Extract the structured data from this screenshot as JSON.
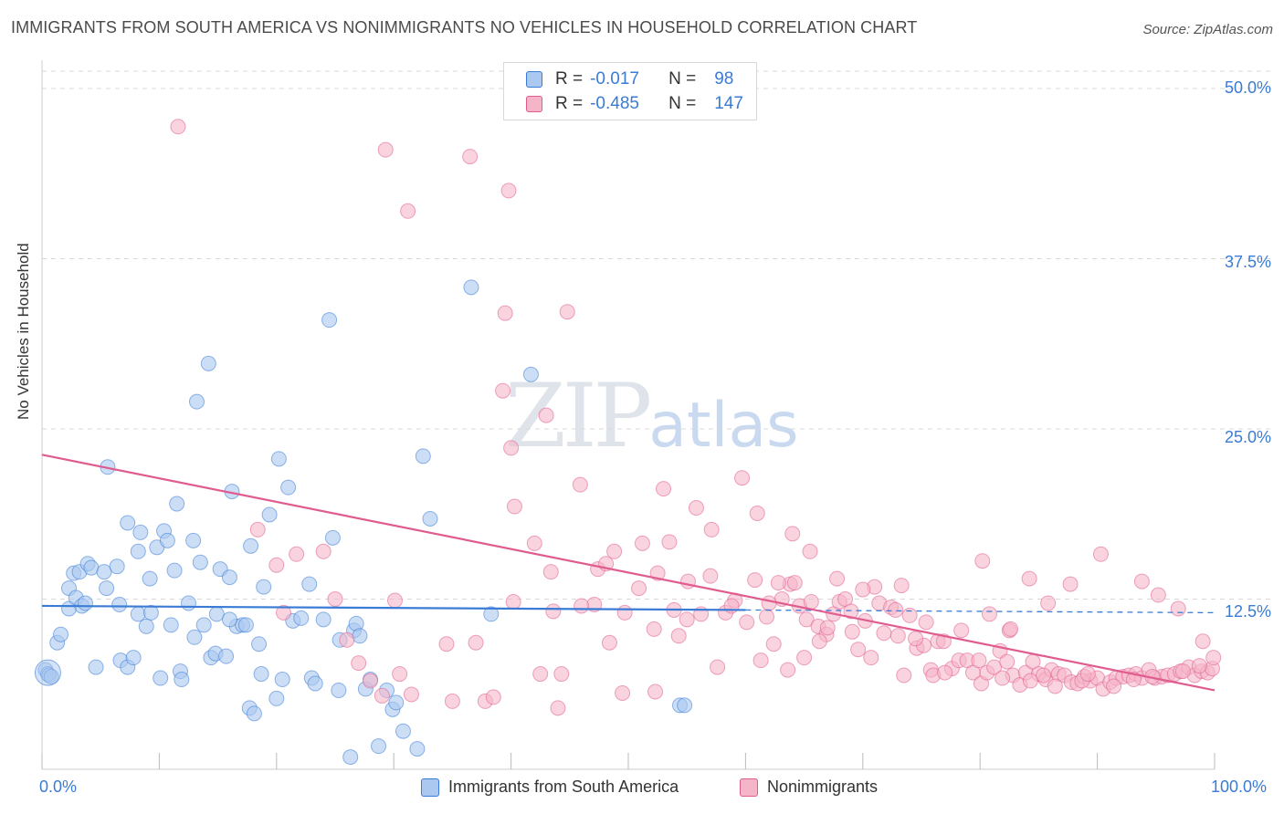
{
  "title": "IMMIGRANTS FROM SOUTH AMERICA VS NONIMMIGRANTS NO VEHICLES IN HOUSEHOLD CORRELATION CHART",
  "source": "Source: ZipAtlas.com",
  "watermark": {
    "zip": "ZIP",
    "atlas": "atlas"
  },
  "legend": {
    "series1": {
      "r_label": "R =",
      "r_value": "-0.017",
      "n_label": "N =",
      "n_value": "98"
    },
    "series2": {
      "r_label": "R =",
      "r_value": "-0.485",
      "n_label": "N =",
      "n_value": "147"
    }
  },
  "colors": {
    "blue": "#3a7bd5",
    "blue_fill": "#aac8f0",
    "pink": "#e05c8f",
    "pink_fill": "#f5b5c8",
    "grid": "#d8d8d8"
  },
  "chart_data": {
    "type": "scatter",
    "title": "IMMIGRANTS FROM SOUTH AMERICA VS NONIMMIGRANTS NO VEHICLES IN HOUSEHOLD CORRELATION CHART",
    "xlabel": "",
    "ylabel": "No Vehicles in Household",
    "xlim": [
      0,
      100
    ],
    "ylim": [
      0,
      50
    ],
    "x_tick_labels": [
      "0.0%",
      "100.0%"
    ],
    "y_ticks": [
      12.5,
      25.0,
      37.5,
      50.0
    ],
    "y_tick_labels": [
      "12.5%",
      "25.0%",
      "37.5%",
      "50.0%"
    ],
    "grid": true,
    "legend_position": "bottom",
    "series": [
      {
        "name": "Immigrants from South America",
        "color": "#3a7bd5",
        "trend": {
          "x0": 0,
          "y0": 12.0,
          "x1": 60,
          "y1": 11.7,
          "dashed_to": 100,
          "y_end": 11.5
        },
        "points": [
          [
            0.3,
            7.3
          ],
          [
            0.5,
            7.0
          ],
          [
            0.6,
            6.9
          ],
          [
            0.8,
            6.8
          ],
          [
            1.3,
            9.3
          ],
          [
            1.6,
            9.9
          ],
          [
            2.3,
            11.8
          ],
          [
            2.3,
            13.3
          ],
          [
            2.7,
            14.4
          ],
          [
            2.9,
            12.6
          ],
          [
            3.2,
            14.5
          ],
          [
            3.4,
            12.0
          ],
          [
            3.7,
            12.2
          ],
          [
            3.9,
            15.1
          ],
          [
            4.2,
            14.8
          ],
          [
            4.6,
            7.5
          ],
          [
            5.3,
            14.5
          ],
          [
            5.5,
            13.3
          ],
          [
            5.6,
            22.2
          ],
          [
            6.4,
            14.9
          ],
          [
            6.6,
            12.1
          ],
          [
            6.7,
            8.0
          ],
          [
            7.3,
            18.1
          ],
          [
            7.3,
            7.5
          ],
          [
            7.8,
            8.2
          ],
          [
            8.2,
            11.4
          ],
          [
            8.4,
            17.4
          ],
          [
            8.9,
            10.5
          ],
          [
            9.2,
            14.0
          ],
          [
            9.3,
            11.5
          ],
          [
            9.8,
            16.3
          ],
          [
            10.1,
            6.7
          ],
          [
            10.4,
            17.5
          ],
          [
            10.7,
            16.8
          ],
          [
            11.0,
            10.6
          ],
          [
            11.3,
            14.6
          ],
          [
            11.5,
            19.5
          ],
          [
            11.8,
            7.2
          ],
          [
            11.9,
            6.6
          ],
          [
            12.5,
            12.2
          ],
          [
            12.9,
            16.8
          ],
          [
            13.0,
            9.7
          ],
          [
            13.2,
            27.0
          ],
          [
            13.5,
            15.2
          ],
          [
            13.8,
            10.6
          ],
          [
            14.2,
            29.8
          ],
          [
            14.4,
            8.2
          ],
          [
            14.9,
            11.4
          ],
          [
            14.8,
            8.5
          ],
          [
            15.2,
            14.7
          ],
          [
            15.7,
            8.3
          ],
          [
            16.0,
            14.1
          ],
          [
            16.2,
            20.4
          ],
          [
            16.6,
            10.5
          ],
          [
            17.1,
            10.6
          ],
          [
            17.4,
            10.6
          ],
          [
            17.7,
            4.5
          ],
          [
            17.8,
            16.4
          ],
          [
            18.1,
            4.1
          ],
          [
            18.5,
            9.2
          ],
          [
            18.7,
            7.0
          ],
          [
            18.9,
            13.4
          ],
          [
            19.4,
            18.7
          ],
          [
            20.0,
            5.2
          ],
          [
            20.2,
            22.8
          ],
          [
            20.5,
            6.6
          ],
          [
            21.0,
            20.7
          ],
          [
            21.4,
            10.9
          ],
          [
            22.1,
            11.1
          ],
          [
            22.8,
            13.6
          ],
          [
            23.0,
            6.7
          ],
          [
            23.3,
            6.3
          ],
          [
            24.0,
            11.0
          ],
          [
            24.5,
            33.0
          ],
          [
            24.8,
            17.0
          ],
          [
            25.3,
            5.8
          ],
          [
            25.4,
            9.5
          ],
          [
            26.3,
            0.9
          ],
          [
            26.6,
            10.2
          ],
          [
            26.8,
            10.7
          ],
          [
            27.1,
            9.8
          ],
          [
            27.6,
            5.9
          ],
          [
            28.0,
            6.6
          ],
          [
            28.7,
            1.7
          ],
          [
            29.4,
            5.8
          ],
          [
            29.9,
            4.4
          ],
          [
            30.2,
            4.9
          ],
          [
            30.8,
            2.8
          ],
          [
            32.0,
            1.5
          ],
          [
            32.5,
            23.0
          ],
          [
            33.1,
            18.4
          ],
          [
            36.6,
            35.4
          ],
          [
            38.3,
            11.4
          ],
          [
            41.7,
            29.0
          ],
          [
            54.4,
            4.7
          ],
          [
            54.8,
            4.7
          ],
          [
            8.2,
            16.0
          ],
          [
            16.0,
            11.0
          ]
        ]
      },
      {
        "name": "Nonimmigrants",
        "color": "#e05c8f",
        "trend": {
          "x0": 0,
          "y0": 23.1,
          "x1": 100,
          "y1": 5.8
        },
        "points": [
          [
            11.6,
            47.2
          ],
          [
            29.3,
            45.5
          ],
          [
            31.2,
            41.0
          ],
          [
            30.1,
            12.4
          ],
          [
            36.5,
            45.0
          ],
          [
            39.8,
            42.5
          ],
          [
            39.5,
            33.5
          ],
          [
            39.3,
            27.8
          ],
          [
            40.0,
            23.6
          ],
          [
            40.3,
            19.3
          ],
          [
            42.0,
            16.6
          ],
          [
            43.0,
            26.0
          ],
          [
            43.4,
            14.5
          ],
          [
            43.6,
            11.6
          ],
          [
            44.0,
            4.5
          ],
          [
            44.8,
            33.6
          ],
          [
            45.9,
            20.9
          ],
          [
            47.1,
            12.1
          ],
          [
            47.4,
            14.7
          ],
          [
            48.1,
            15.1
          ],
          [
            48.4,
            9.3
          ],
          [
            48.8,
            16.0
          ],
          [
            49.7,
            11.5
          ],
          [
            50.9,
            13.3
          ],
          [
            51.2,
            16.6
          ],
          [
            52.2,
            10.3
          ],
          [
            52.5,
            14.4
          ],
          [
            53.0,
            20.6
          ],
          [
            53.5,
            16.7
          ],
          [
            53.9,
            11.7
          ],
          [
            54.3,
            9.8
          ],
          [
            55.1,
            13.8
          ],
          [
            55.8,
            19.2
          ],
          [
            56.2,
            11.4
          ],
          [
            57.0,
            14.2
          ],
          [
            57.6,
            7.5
          ],
          [
            58.3,
            11.5
          ],
          [
            59.1,
            12.4
          ],
          [
            59.7,
            21.4
          ],
          [
            60.1,
            10.8
          ],
          [
            60.8,
            13.9
          ],
          [
            61.3,
            8.0
          ],
          [
            61.8,
            11.2
          ],
          [
            62.4,
            9.2
          ],
          [
            63.1,
            12.5
          ],
          [
            63.6,
            7.3
          ],
          [
            64.0,
            17.3
          ],
          [
            64.6,
            12.0
          ],
          [
            65.2,
            11.0
          ],
          [
            65.6,
            12.3
          ],
          [
            66.2,
            10.5
          ],
          [
            66.9,
            9.9
          ],
          [
            67.5,
            11.4
          ],
          [
            68.0,
            12.3
          ],
          [
            68.5,
            12.5
          ],
          [
            69.1,
            10.1
          ],
          [
            69.6,
            8.8
          ],
          [
            70.2,
            10.9
          ],
          [
            70.7,
            8.2
          ],
          [
            71.4,
            12.2
          ],
          [
            71.8,
            10.0
          ],
          [
            72.4,
            11.9
          ],
          [
            73.0,
            9.8
          ],
          [
            73.5,
            6.9
          ],
          [
            74.0,
            11.3
          ],
          [
            74.6,
            8.9
          ],
          [
            75.2,
            9.1
          ],
          [
            75.8,
            7.3
          ],
          [
            76.4,
            9.4
          ],
          [
            76.9,
            9.4
          ],
          [
            77.6,
            7.4
          ],
          [
            78.2,
            8.0
          ],
          [
            78.9,
            8.0
          ],
          [
            79.4,
            7.1
          ],
          [
            80.1,
            6.3
          ],
          [
            80.6,
            7.1
          ],
          [
            81.2,
            7.5
          ],
          [
            81.7,
            8.7
          ],
          [
            82.3,
            7.9
          ],
          [
            82.8,
            6.9
          ],
          [
            83.4,
            6.2
          ],
          [
            83.9,
            7.1
          ],
          [
            84.5,
            7.9
          ],
          [
            85.0,
            7.0
          ],
          [
            85.6,
            6.6
          ],
          [
            86.1,
            7.3
          ],
          [
            86.7,
            7.0
          ],
          [
            87.2,
            6.9
          ],
          [
            87.8,
            6.4
          ],
          [
            88.3,
            6.3
          ],
          [
            88.9,
            6.8
          ],
          [
            89.4,
            6.5
          ],
          [
            90.0,
            6.7
          ],
          [
            90.5,
            5.9
          ],
          [
            91.1,
            6.4
          ],
          [
            91.6,
            6.7
          ],
          [
            92.2,
            6.8
          ],
          [
            92.7,
            6.9
          ],
          [
            93.3,
            7.0
          ],
          [
            93.8,
            6.7
          ],
          [
            94.4,
            7.3
          ],
          [
            94.9,
            6.7
          ],
          [
            95.5,
            6.8
          ],
          [
            96.0,
            6.9
          ],
          [
            96.6,
            7.0
          ],
          [
            97.1,
            7.2
          ],
          [
            97.8,
            7.5
          ],
          [
            98.3,
            6.9
          ],
          [
            98.9,
            7.2
          ],
          [
            99.4,
            7.1
          ],
          [
            99.8,
            7.4
          ],
          [
            24.0,
            16.0
          ],
          [
            25.0,
            12.5
          ],
          [
            26.0,
            9.5
          ],
          [
            27.0,
            7.8
          ],
          [
            28.0,
            6.5
          ],
          [
            29.0,
            5.4
          ],
          [
            30.5,
            7.0
          ],
          [
            31.5,
            5.5
          ],
          [
            34.5,
            9.2
          ],
          [
            35.0,
            5.0
          ],
          [
            37.0,
            9.3
          ],
          [
            37.8,
            5.0
          ],
          [
            38.5,
            5.3
          ],
          [
            40.2,
            12.3
          ],
          [
            42.5,
            7.0
          ],
          [
            44.3,
            7.0
          ],
          [
            46.0,
            12.0
          ],
          [
            49.5,
            5.6
          ],
          [
            52.3,
            5.7
          ],
          [
            55.0,
            11.0
          ],
          [
            57.1,
            17.6
          ],
          [
            58.8,
            12.0
          ],
          [
            61.0,
            18.8
          ],
          [
            62.0,
            12.2
          ],
          [
            63.8,
            13.6
          ],
          [
            65.0,
            8.2
          ],
          [
            67.0,
            10.4
          ],
          [
            69.0,
            11.6
          ],
          [
            71.0,
            13.4
          ],
          [
            72.8,
            11.7
          ],
          [
            74.5,
            9.6
          ],
          [
            76.0,
            6.9
          ],
          [
            77.0,
            7.1
          ],
          [
            78.4,
            10.2
          ],
          [
            79.9,
            8.0
          ],
          [
            80.8,
            11.4
          ],
          [
            81.9,
            6.7
          ],
          [
            82.5,
            10.2
          ],
          [
            84.3,
            6.5
          ],
          [
            85.4,
            6.9
          ],
          [
            86.4,
            6.1
          ],
          [
            88.7,
            6.5
          ],
          [
            89.2,
            7.0
          ],
          [
            91.4,
            6.1
          ],
          [
            93.1,
            6.6
          ],
          [
            94.7,
            6.8
          ],
          [
            97.3,
            7.2
          ],
          [
            98.7,
            7.6
          ],
          [
            99.9,
            8.2
          ],
          [
            18.4,
            17.6
          ],
          [
            20.0,
            15.0
          ],
          [
            21.7,
            15.8
          ],
          [
            62.8,
            13.7
          ],
          [
            64.2,
            13.7
          ],
          [
            66.3,
            9.4
          ],
          [
            65.5,
            16.0
          ],
          [
            67.8,
            14.0
          ],
          [
            70.0,
            13.2
          ],
          [
            73.3,
            13.5
          ],
          [
            75.4,
            10.8
          ],
          [
            82.6,
            10.3
          ],
          [
            80.2,
            15.3
          ],
          [
            84.2,
            14.0
          ],
          [
            85.8,
            12.2
          ],
          [
            87.7,
            13.6
          ],
          [
            90.3,
            15.8
          ],
          [
            93.8,
            13.8
          ],
          [
            95.2,
            12.8
          ],
          [
            96.9,
            11.8
          ],
          [
            99.0,
            9.4
          ],
          [
            20.6,
            11.5
          ]
        ]
      }
    ]
  }
}
